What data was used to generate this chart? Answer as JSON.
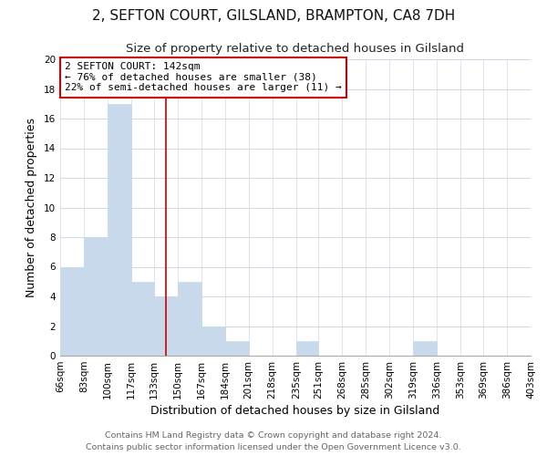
{
  "title": "2, SEFTON COURT, GILSLAND, BRAMPTON, CA8 7DH",
  "subtitle": "Size of property relative to detached houses in Gilsland",
  "xlabel": "Distribution of detached houses by size in Gilsland",
  "ylabel": "Number of detached properties",
  "bar_color": "#c8d9ec",
  "bar_edge_color": "#c8d9ec",
  "grid_color": "#d0d8e8",
  "bin_edges": [
    66,
    83,
    100,
    117,
    133,
    150,
    167,
    184,
    201,
    218,
    235,
    251,
    268,
    285,
    302,
    319,
    336,
    353,
    369,
    386,
    403
  ],
  "bin_labels": [
    "66sqm",
    "83sqm",
    "100sqm",
    "117sqm",
    "133sqm",
    "150sqm",
    "167sqm",
    "184sqm",
    "201sqm",
    "218sqm",
    "235sqm",
    "251sqm",
    "268sqm",
    "285sqm",
    "302sqm",
    "319sqm",
    "336sqm",
    "353sqm",
    "369sqm",
    "386sqm",
    "403sqm"
  ],
  "counts": [
    6,
    8,
    17,
    5,
    4,
    5,
    2,
    1,
    0,
    0,
    1,
    0,
    0,
    0,
    0,
    1,
    0,
    0,
    0,
    0
  ],
  "property_value": 142,
  "property_line_color": "#cc0000",
  "annotation_line1": "2 SEFTON COURT: 142sqm",
  "annotation_line2": "← 76% of detached houses are smaller (38)",
  "annotation_line3": "22% of semi-detached houses are larger (11) →",
  "annotation_box_edgecolor": "#cc0000",
  "annotation_box_facecolor": "#ffffff",
  "ylim": [
    0,
    20
  ],
  "yticks": [
    0,
    2,
    4,
    6,
    8,
    10,
    12,
    14,
    16,
    18,
    20
  ],
  "footer_line1": "Contains HM Land Registry data © Crown copyright and database right 2024.",
  "footer_line2": "Contains public sector information licensed under the Open Government Licence v3.0.",
  "background_color": "#ffffff",
  "title_fontsize": 11,
  "subtitle_fontsize": 9.5,
  "axis_label_fontsize": 9,
  "tick_fontsize": 7.5,
  "annotation_fontsize": 8,
  "footer_fontsize": 6.8
}
